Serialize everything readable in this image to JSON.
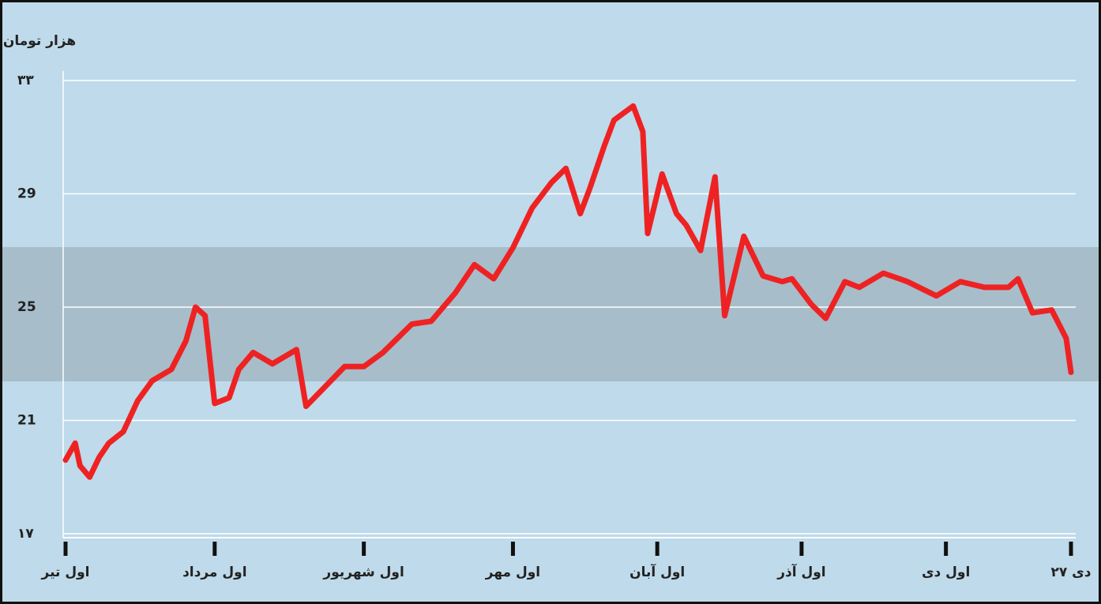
{
  "chart_data": {
    "type": "line",
    "y_axis_label": "هزار تومان",
    "xlim": [
      0,
      209
    ],
    "xticks": [
      {
        "value": 0,
        "label": "اول تیر"
      },
      {
        "value": 31,
        "label": "اول مرداد"
      },
      {
        "value": 62,
        "label": "اول شهریور"
      },
      {
        "value": 93,
        "label": "اول مهر"
      },
      {
        "value": 123,
        "label": "اول آبان"
      },
      {
        "value": 153,
        "label": "اول آذر"
      },
      {
        "value": 183,
        "label": "اول دی"
      },
      {
        "value": 209,
        "label": "۲۷ دی"
      }
    ],
    "ylim": [
      17,
      33
    ],
    "yticks": [
      {
        "value": 17,
        "label": "۱۷"
      },
      21,
      25,
      29,
      {
        "value": 33,
        "label": "۳۳"
      }
    ],
    "grid": true,
    "series": [
      {
        "color": "#ee2222",
        "x": [
          0,
          2,
          3,
          5,
          7,
          9,
          12,
          15,
          18,
          22,
          25,
          27,
          29,
          31,
          34,
          36,
          39,
          43,
          48,
          50,
          54,
          58,
          62,
          66,
          72,
          76,
          81,
          85,
          89,
          93,
          97,
          101,
          104,
          107,
          109,
          112,
          114,
          118,
          120,
          121,
          124,
          127,
          129,
          132,
          135,
          137,
          141,
          145,
          149,
          151,
          155,
          158,
          162,
          165,
          170,
          175,
          181,
          186,
          191,
          196,
          198,
          201,
          205,
          208,
          209
        ],
        "values": [
          19.6,
          20.2,
          19.4,
          19.0,
          19.7,
          20.2,
          20.6,
          21.7,
          22.4,
          22.8,
          23.8,
          25.0,
          24.7,
          21.6,
          21.8,
          22.8,
          23.4,
          23.0,
          23.5,
          21.5,
          22.2,
          22.9,
          22.9,
          23.4,
          24.4,
          24.5,
          25.5,
          26.5,
          26.0,
          27.1,
          28.5,
          29.4,
          29.9,
          28.3,
          29.2,
          30.7,
          31.6,
          32.1,
          31.2,
          27.6,
          29.7,
          28.3,
          27.9,
          27.0,
          29.6,
          24.7,
          27.5,
          26.1,
          25.9,
          26.0,
          25.1,
          24.6,
          25.9,
          25.7,
          26.2,
          25.9,
          25.4,
          25.9,
          25.7,
          25.7,
          26.0,
          24.8,
          24.9,
          23.9,
          22.7
        ]
      }
    ]
  }
}
